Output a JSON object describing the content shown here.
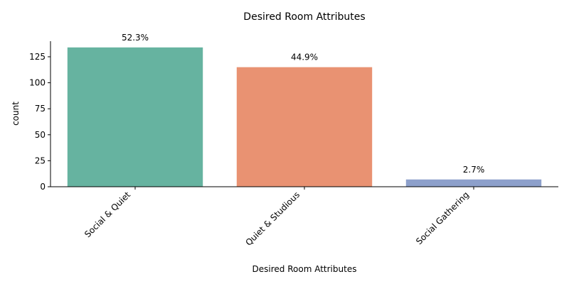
{
  "chart_data": {
    "type": "bar",
    "title": "Desired Room Attributes",
    "xlabel": "Desired Room Attributes",
    "ylabel": "count",
    "categories": [
      "Social & Quiet",
      "Quiet & Studious",
      "Social Gathering"
    ],
    "values": [
      134,
      115,
      7
    ],
    "data_labels": [
      "52.3%",
      "44.9%",
      "2.7%"
    ],
    "colors": [
      "#66b3a0",
      "#e99272",
      "#8da0cb"
    ],
    "ylim": [
      0,
      140
    ],
    "yticks": [
      0,
      25,
      50,
      75,
      100,
      125
    ],
    "grid": false,
    "legend": "none"
  }
}
